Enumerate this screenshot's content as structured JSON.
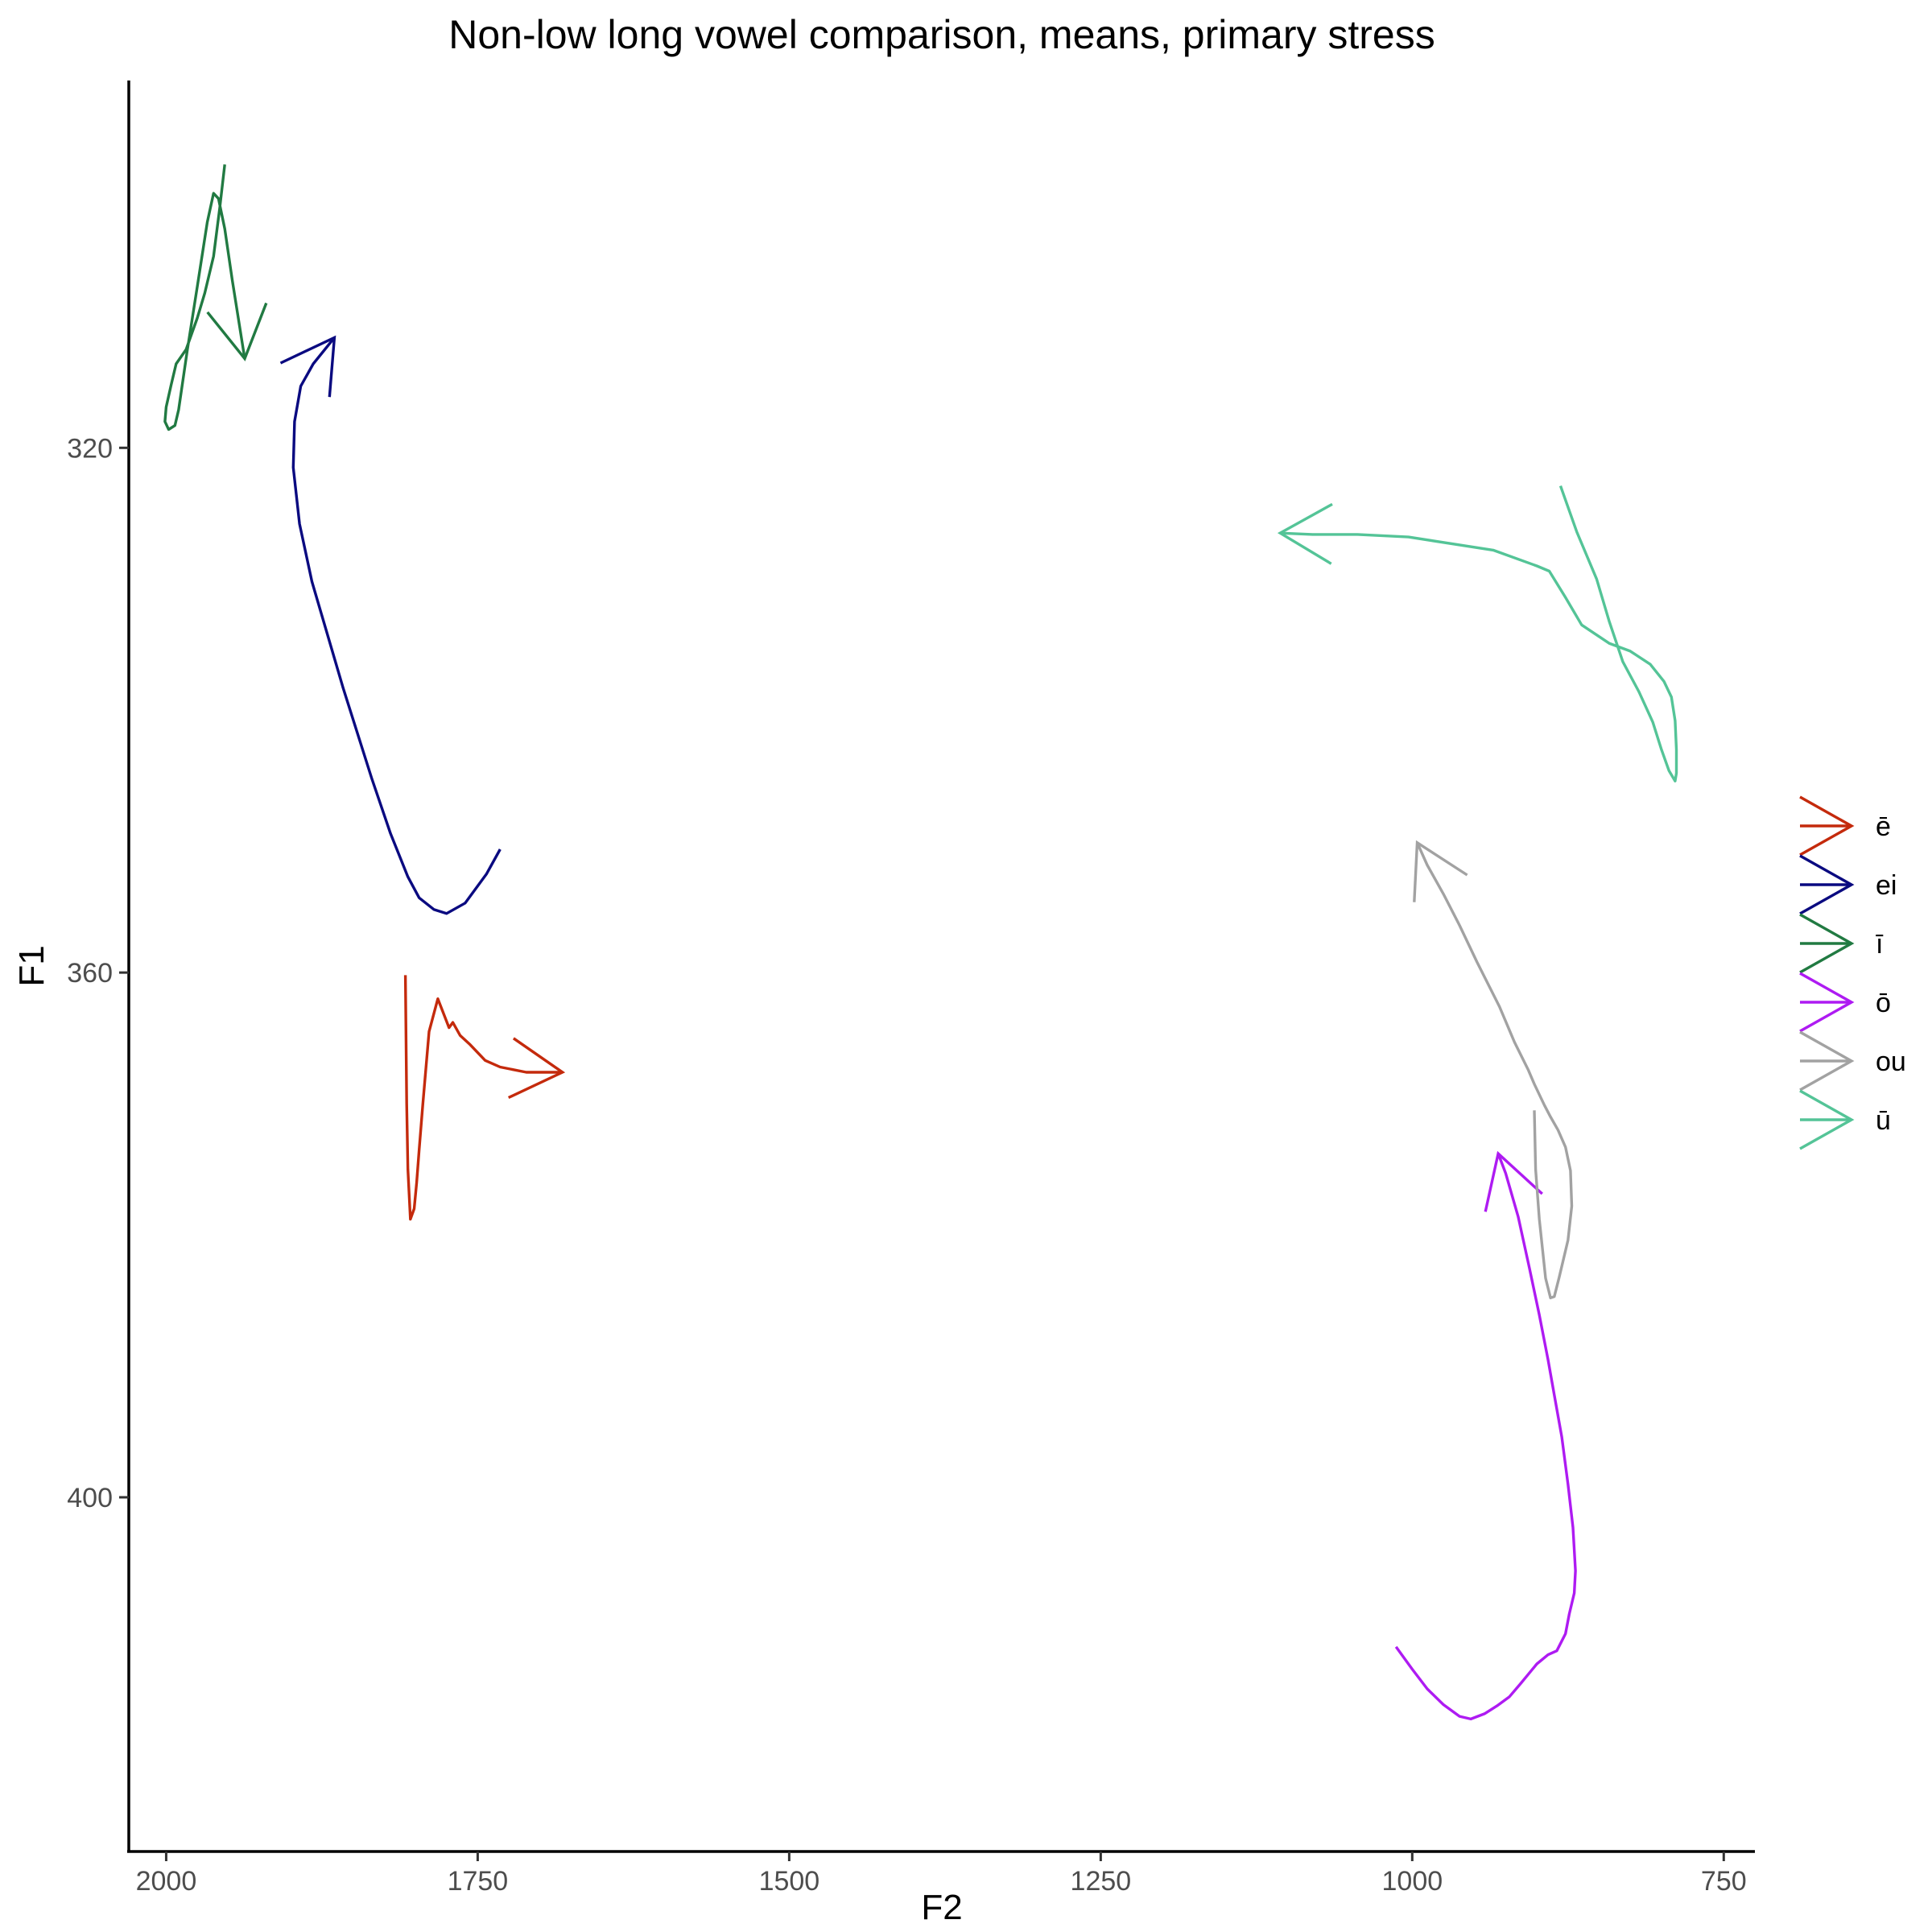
{
  "chart_data": {
    "type": "line",
    "title": "Non-low long vowel comparison, means, primary stress",
    "xlabel": "F2",
    "ylabel": "F1",
    "x_reversed": true,
    "y_reversed": true,
    "xlim": [
      2030,
      725
    ],
    "ylim": [
      292,
      427
    ],
    "x_ticks": [
      2000,
      1750,
      1500,
      1250,
      1000,
      750
    ],
    "y_ticks": [
      320,
      360,
      400
    ],
    "grid": false,
    "legend_position": "right",
    "series": [
      {
        "name": "ē",
        "color": "#c42a0c",
        "points": [
          [
            1808,
            360.2
          ],
          [
            1807,
            370
          ],
          [
            1806,
            375
          ],
          [
            1804,
            378.8
          ],
          [
            1801,
            378
          ],
          [
            1799,
            376
          ],
          [
            1797,
            373.5
          ],
          [
            1794,
            370
          ],
          [
            1789,
            364.5
          ],
          [
            1782,
            362
          ],
          [
            1773,
            364.2
          ],
          [
            1770,
            363.8
          ],
          [
            1764,
            364.8
          ],
          [
            1756,
            365.5
          ],
          [
            1744,
            366.7
          ],
          [
            1732,
            367.2
          ],
          [
            1711,
            367.6
          ],
          [
            1682,
            367.6
          ]
        ]
      },
      {
        "name": "ei",
        "color": "#0a0a80",
        "points": [
          [
            1732,
            350.6
          ],
          [
            1743,
            352.5
          ],
          [
            1760,
            354.7
          ],
          [
            1775,
            355.5
          ],
          [
            1785,
            355.2
          ],
          [
            1797,
            354.3
          ],
          [
            1806,
            352.7
          ],
          [
            1820,
            349.4
          ],
          [
            1835,
            345.2
          ],
          [
            1858,
            338.3
          ],
          [
            1883,
            330.2
          ],
          [
            1893,
            325.8
          ],
          [
            1898,
            321.5
          ],
          [
            1897,
            318
          ],
          [
            1892,
            315.3
          ],
          [
            1882,
            313.6
          ],
          [
            1865,
            311.6
          ]
        ]
      },
      {
        "name": "ī",
        "color": "#217a42",
        "points": [
          [
            1953,
            298.4
          ],
          [
            1957,
            301.7
          ],
          [
            1962,
            305.4
          ],
          [
            1969,
            308.2
          ],
          [
            1975,
            310.1
          ],
          [
            1984,
            312.5
          ],
          [
            1992,
            313.6
          ],
          [
            1996,
            315.2
          ],
          [
            2000,
            316.9
          ],
          [
            2001,
            318
          ],
          [
            1998,
            318.6
          ],
          [
            1993,
            318.3
          ],
          [
            1990,
            317.1
          ],
          [
            1983,
            312.5
          ],
          [
            1975,
            307.7
          ],
          [
            1967,
            302.8
          ],
          [
            1962,
            300.6
          ],
          [
            1958,
            301
          ],
          [
            1953,
            303.3
          ],
          [
            1947,
            307.2
          ],
          [
            1937,
            313.2
          ]
        ]
      },
      {
        "name": "ō",
        "color": "#ae1bf2",
        "points": [
          [
            1013,
            411.4
          ],
          [
            1000,
            413.1
          ],
          [
            988,
            414.6
          ],
          [
            975,
            415.8
          ],
          [
            962,
            416.7
          ],
          [
            953,
            416.9
          ],
          [
            942,
            416.5
          ],
          [
            932,
            415.9
          ],
          [
            922,
            415.2
          ],
          [
            913,
            414.2
          ],
          [
            900,
            412.7
          ],
          [
            891,
            412
          ],
          [
            884,
            411.7
          ],
          [
            877,
            410.4
          ],
          [
            874,
            408.9
          ],
          [
            870,
            407.3
          ],
          [
            869,
            405.6
          ],
          [
            871,
            402.3
          ],
          [
            875,
            399
          ],
          [
            880,
            395.4
          ],
          [
            886,
            392.2
          ],
          [
            891,
            389.5
          ],
          [
            898,
            386.1
          ],
          [
            906,
            382.5
          ],
          [
            915,
            378.6
          ],
          [
            925,
            375.3
          ],
          [
            931,
            373.8
          ]
        ]
      },
      {
        "name": "ou",
        "color": "#a2a2a2",
        "points": [
          [
            902,
            370.5
          ],
          [
            901,
            375
          ],
          [
            898,
            378.8
          ],
          [
            893,
            383.3
          ],
          [
            889,
            384.8
          ],
          [
            886,
            384.7
          ],
          [
            882,
            383.2
          ],
          [
            875,
            380.4
          ],
          [
            872,
            377.8
          ],
          [
            873,
            375.1
          ],
          [
            877,
            373.3
          ],
          [
            883,
            372
          ],
          [
            889,
            371
          ],
          [
            894,
            370.1
          ],
          [
            902,
            368.5
          ],
          [
            907,
            367.4
          ],
          [
            918,
            365.3
          ],
          [
            930,
            362.6
          ],
          [
            948,
            359.2
          ],
          [
            962,
            356.4
          ],
          [
            975,
            354
          ],
          [
            988,
            351.8
          ],
          [
            996,
            350.1
          ]
        ]
      },
      {
        "name": "ū",
        "color": "#54c497",
        "points": [
          [
            881,
            322.9
          ],
          [
            868,
            326.4
          ],
          [
            852,
            330
          ],
          [
            842,
            333.2
          ],
          [
            831,
            336.3
          ],
          [
            818,
            338.6
          ],
          [
            807,
            340.9
          ],
          [
            800,
            343
          ],
          [
            794,
            344.6
          ],
          [
            789,
            345.4
          ],
          [
            788,
            344.8
          ],
          [
            788,
            343
          ],
          [
            789,
            340.8
          ],
          [
            792,
            339
          ],
          [
            798,
            337.8
          ],
          [
            809,
            336.5
          ],
          [
            825,
            335.5
          ],
          [
            842,
            334.9
          ],
          [
            864,
            333.5
          ],
          [
            877,
            331.4
          ],
          [
            890,
            329.4
          ],
          [
            900,
            329
          ],
          [
            935,
            327.8
          ],
          [
            1003,
            326.8
          ],
          [
            1044,
            326.6
          ],
          [
            1080,
            326.6
          ],
          [
            1106,
            326.5
          ]
        ]
      }
    ]
  }
}
